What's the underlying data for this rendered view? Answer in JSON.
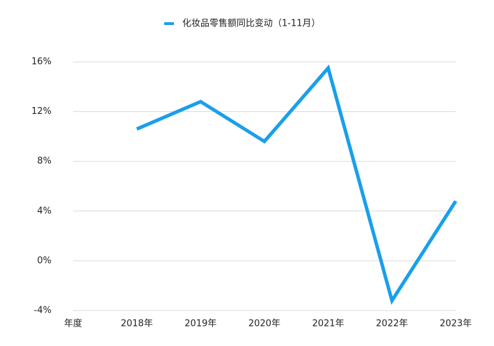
{
  "chart_data": {
    "type": "line",
    "categories": [
      "年度",
      "2018年",
      "2019年",
      "2020年",
      "2021年",
      "2022年",
      "2023年"
    ],
    "series": [
      {
        "name": "化妆品零售额同比变动（1-11月）",
        "color": "#1a9fea",
        "values": [
          null,
          10.6,
          12.8,
          9.6,
          15.5,
          -3.2,
          4.8
        ]
      }
    ],
    "ylim": [
      -4,
      16
    ],
    "yticks": [
      {
        "value": -4,
        "label": "-4%"
      },
      {
        "value": 0,
        "label": "0%"
      },
      {
        "value": 4,
        "label": "4%"
      },
      {
        "value": 8,
        "label": "8%"
      },
      {
        "value": 12,
        "label": "12%"
      },
      {
        "value": 16,
        "label": "16%"
      }
    ],
    "grid": true
  }
}
